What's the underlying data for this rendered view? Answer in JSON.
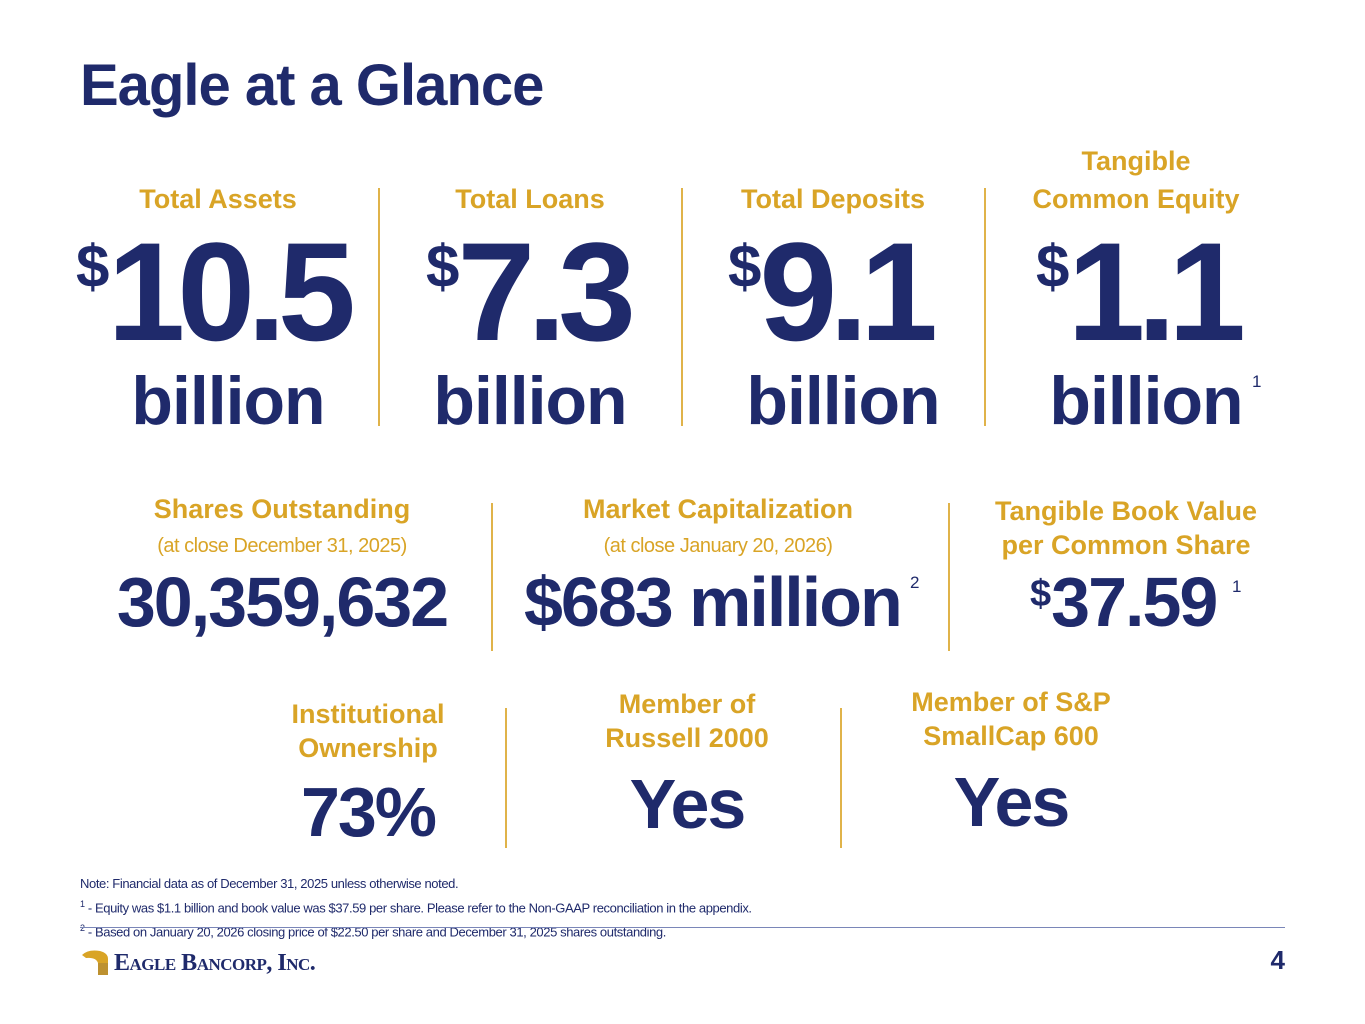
{
  "title": "Eagle at a Glance",
  "row1": [
    {
      "label_line1": "",
      "label_line2": "Total Assets",
      "currency": "$",
      "value": "10.5",
      "unit": "billion",
      "footnote": ""
    },
    {
      "label_line1": "",
      "label_line2": "Total Loans",
      "currency": "$",
      "value": "7.3",
      "unit": "billion",
      "footnote": ""
    },
    {
      "label_line1": "",
      "label_line2": "Total Deposits",
      "currency": "$",
      "value": "9.1",
      "unit": "billion",
      "footnote": ""
    },
    {
      "label_line1": "Tangible",
      "label_line2": "Common Equity",
      "currency": "$",
      "value": "1.1",
      "unit": "billion",
      "footnote": "1"
    }
  ],
  "row2": [
    {
      "label_line1": "Shares Outstanding",
      "label_line2": "",
      "sub": "(at close December 31, 2025)",
      "value": "30,359,632",
      "footnote": ""
    },
    {
      "label_line1": "Market Capitalization",
      "label_line2": "",
      "sub": "(at close January 20, 2026)",
      "value": "$683 million",
      "footnote": "2"
    },
    {
      "label_line1": "Tangible Book Value",
      "label_line2": "per Common Share",
      "sub": "",
      "currency": "$",
      "value": "37.59",
      "footnote": "1"
    }
  ],
  "row3": [
    {
      "label_line1": "Institutional",
      "label_line2": "Ownership",
      "value": "73%"
    },
    {
      "label_line1": "Member of",
      "label_line2": "Russell 2000",
      "value": "Yes"
    },
    {
      "label_line1": "Member of S&P",
      "label_line2": "SmallCap 600",
      "value": "Yes"
    }
  ],
  "notes": {
    "line1": "Note: Financial data as of December 31, 2025 unless otherwise noted.",
    "line2_marker": "1",
    "line2": " - Equity was $1.1 billion and book value was $37.59 per share. Please refer to the Non-GAAP reconciliation in the appendix.",
    "line3_marker": "2",
    "line3": " - Based on January 20, 2026 closing price of $22.50 per share and December 31, 2025 shares outstanding."
  },
  "footer": {
    "logo_text": "Eagle Bancorp, Inc.",
    "page_number": "4"
  },
  "colors": {
    "navy": "#1f2a6b",
    "gold": "#d9a426",
    "divider": "#e0b34a"
  }
}
